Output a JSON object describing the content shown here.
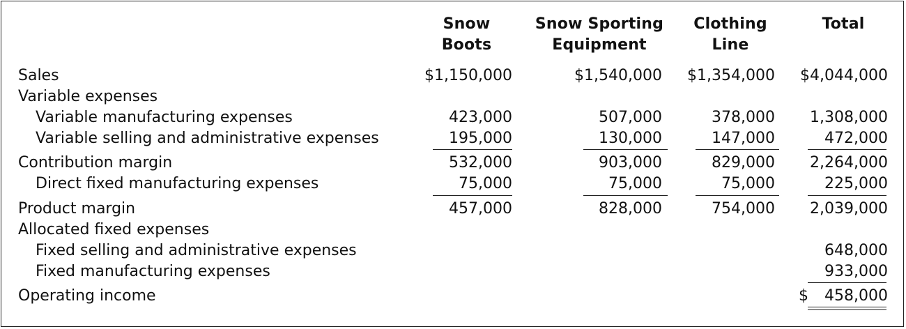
{
  "headers": {
    "snow_boots": "Snow\nBoots",
    "snow_sporting": "Snow Sporting\nEquipment",
    "clothing": "Clothing\nLine",
    "total": "Total"
  },
  "rows": {
    "sales": {
      "label": "Sales",
      "c1": "$1,150,000",
      "c2": "$1,540,000",
      "c3": "$1,354,000",
      "c4": "$4,044,000"
    },
    "variable_expenses": {
      "label": "Variable expenses"
    },
    "var_mfg": {
      "label": "Variable manufacturing expenses",
      "c1": "423,000",
      "c2": "507,000",
      "c3": "378,000",
      "c4": "1,308,000"
    },
    "var_sga": {
      "label": "Variable selling and administrative expenses",
      "c1": "195,000",
      "c2": "130,000",
      "c3": "147,000",
      "c4": "472,000"
    },
    "contribution_margin": {
      "label": "Contribution margin",
      "c1": "532,000",
      "c2": "903,000",
      "c3": "829,000",
      "c4": "2,264,000"
    },
    "direct_fixed_mfg": {
      "label": "Direct fixed manufacturing expenses",
      "c1": "75,000",
      "c2": "75,000",
      "c3": "75,000",
      "c4": "225,000"
    },
    "product_margin": {
      "label": "Product margin",
      "c1": "457,000",
      "c2": "828,000",
      "c3": "754,000",
      "c4": "2,039,000"
    },
    "allocated_fixed": {
      "label": "Allocated fixed expenses"
    },
    "fixed_sga": {
      "label": "Fixed selling and administrative expenses",
      "c4": "648,000"
    },
    "fixed_mfg": {
      "label": "Fixed manufacturing expenses",
      "c4": "933,000"
    },
    "operating_income": {
      "label": "Operating income",
      "dollar": "$",
      "c4": "458,000"
    }
  }
}
